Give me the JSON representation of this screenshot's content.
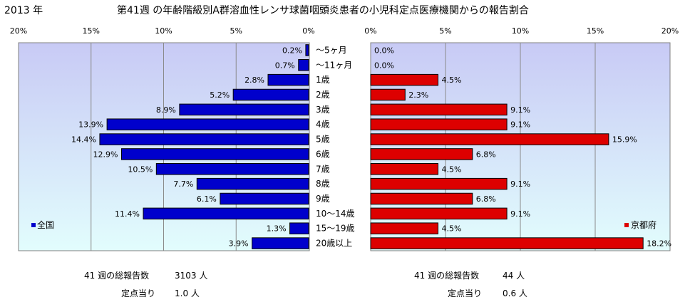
{
  "header": {
    "year": "2013 年",
    "title": "第41週 の年齢階級別A群溶血性レンサ球菌咽頭炎患者の小児科定点医療機関からの報告割合"
  },
  "colors": {
    "left_bar": "#0000cc",
    "right_bar": "#dd0000",
    "plot_bg_top": "#c8caf5",
    "plot_bg_bottom": "#e2fdfd"
  },
  "chart_data": [
    {
      "type": "bar",
      "orientation": "horizontal",
      "direction": "right-to-left",
      "legend": "全国",
      "legend_position": "bottom-left",
      "xlim": [
        0,
        20
      ],
      "x_ticks": [
        "20%",
        "15%",
        "10%",
        "5%",
        "0%"
      ],
      "categories": [
        "～5ヶ月",
        "～11ヶ月",
        "1歳",
        "2歳",
        "3歳",
        "4歳",
        "5歳",
        "6歳",
        "7歳",
        "8歳",
        "9歳",
        "10～14歳",
        "15～19歳",
        "20歳以上"
      ],
      "values": [
        0.2,
        0.7,
        2.8,
        5.2,
        8.9,
        13.9,
        14.4,
        12.9,
        10.5,
        7.7,
        6.1,
        11.4,
        1.3,
        3.9
      ],
      "labels": [
        "0.2%",
        "0.7%",
        "2.8%",
        "5.2%",
        "8.9%",
        "13.9%",
        "14.4%",
        "12.9%",
        "10.5%",
        "7.7%",
        "6.1%",
        "11.4%",
        "1.3%",
        "3.9%"
      ],
      "grid": true
    },
    {
      "type": "bar",
      "orientation": "horizontal",
      "direction": "left-to-right",
      "legend": "京都府",
      "legend_position": "bottom-right",
      "xlim": [
        0,
        20
      ],
      "x_ticks": [
        "0%",
        "5%",
        "10%",
        "15%",
        "20%"
      ],
      "categories": [
        "～5ヶ月",
        "～11ヶ月",
        "1歳",
        "2歳",
        "3歳",
        "4歳",
        "5歳",
        "6歳",
        "7歳",
        "8歳",
        "9歳",
        "10～14歳",
        "15～19歳",
        "20歳以上"
      ],
      "values": [
        0.0,
        0.0,
        4.5,
        2.3,
        9.1,
        9.1,
        15.9,
        6.8,
        4.5,
        9.1,
        6.8,
        9.1,
        4.5,
        18.2
      ],
      "labels": [
        "0.0%",
        "0.0%",
        "4.5%",
        "2.3%",
        "9.1%",
        "9.1%",
        "15.9%",
        "6.8%",
        "4.5%",
        "9.1%",
        "6.8%",
        "9.1%",
        "4.5%",
        "18.2%"
      ],
      "grid": true
    }
  ],
  "footer": {
    "left": {
      "total_label": "41 週の総報告数",
      "total_value": "3103 人",
      "per_label": "定点当り",
      "per_value": "1.0 人"
    },
    "right": {
      "total_label": "41 週の総報告数",
      "total_value": "44 人",
      "per_label": "定点当り",
      "per_value": "0.6 人"
    }
  }
}
